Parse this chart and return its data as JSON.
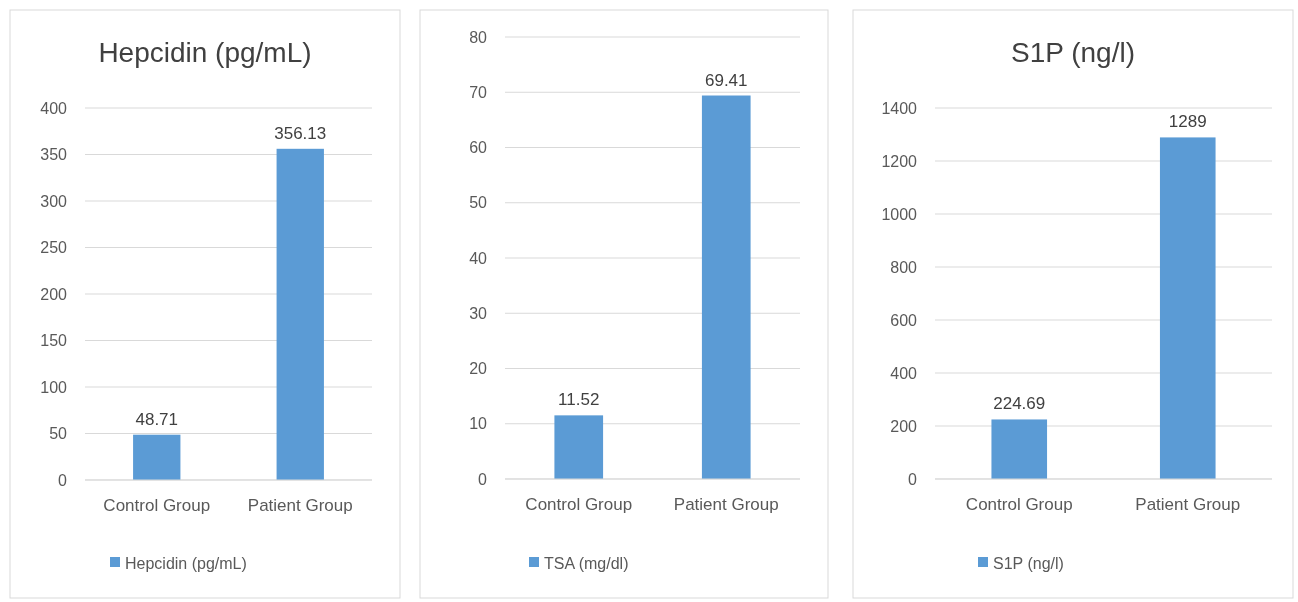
{
  "chart_data": [
    {
      "type": "bar",
      "title": "Hepcidin (pg/mL)",
      "categories": [
        "Control Group",
        "Patient Group"
      ],
      "series": [
        {
          "name": "Hepcidin (pg/mL)",
          "color": "#5b9bd5",
          "values": [
            48.71,
            356.13
          ]
        }
      ],
      "ylim": [
        0,
        400
      ],
      "yticks": [
        0,
        50,
        100,
        150,
        200,
        250,
        300,
        350,
        400
      ],
      "grid": "y",
      "legend": "bottom",
      "data_labels": true
    },
    {
      "type": "bar",
      "categories": [
        "Control Group",
        "Patient Group"
      ],
      "series": [
        {
          "name": "TSA (mg/dl)",
          "color": "#5b9bd5",
          "values": [
            11.52,
            69.41
          ]
        }
      ],
      "ylim": [
        0,
        80
      ],
      "yticks": [
        0,
        10,
        20,
        30,
        40,
        50,
        60,
        70,
        80
      ],
      "grid": "y",
      "legend": "bottom",
      "data_labels": true
    },
    {
      "type": "bar",
      "title": "S1P (ng/l)",
      "categories": [
        "Control Group",
        "Patient Group"
      ],
      "series": [
        {
          "name": "S1P (ng/l)",
          "color": "#5b9bd5",
          "values": [
            224.69,
            1289
          ]
        }
      ],
      "ylim": [
        0,
        1400
      ],
      "yticks": [
        0,
        200,
        400,
        600,
        800,
        1000,
        1200,
        1400
      ],
      "grid": "y",
      "legend": "bottom",
      "data_labels": true
    }
  ]
}
